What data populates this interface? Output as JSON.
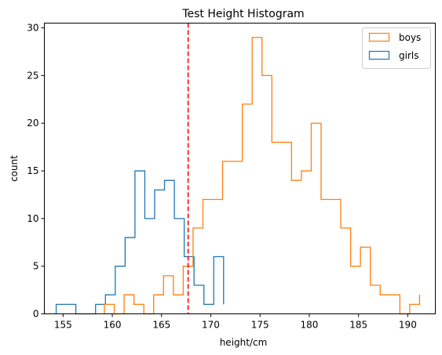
{
  "chart_data": {
    "type": "histogram",
    "title": "Test Height Histogram",
    "xlabel": "height/cm",
    "ylabel": "count",
    "xlim": [
      153.1,
      192.8
    ],
    "ylim": [
      0,
      30.5
    ],
    "xticks": [
      155,
      160,
      165,
      170,
      175,
      180,
      185,
      190
    ],
    "yticks": [
      0,
      5,
      10,
      15,
      20,
      25,
      30
    ],
    "grid": false,
    "legend_position": "top-right",
    "reference_line": {
      "x": 167.7,
      "color": "#ff0000",
      "style": "dashed"
    },
    "series": [
      {
        "name": "boys",
        "color": "#ff7f0e",
        "bin_edges": [
          159.2,
          160.2,
          161.2,
          162.2,
          163.2,
          164.2,
          165.2,
          166.2,
          167.2,
          168.2,
          169.2,
          170.2,
          171.2,
          172.2,
          173.2,
          174.2,
          175.2,
          176.2,
          177.2,
          178.2,
          179.2,
          180.2,
          181.2,
          182.2,
          183.2,
          184.2,
          185.2,
          186.2,
          187.2,
          188.2,
          189.2,
          190.2,
          191.2
        ],
        "counts": [
          1,
          0,
          2,
          1,
          0,
          2,
          4,
          2,
          5,
          9,
          12,
          12,
          16,
          16,
          22,
          29,
          25,
          18,
          18,
          14,
          15,
          20,
          12,
          12,
          9,
          5,
          7,
          3,
          2,
          2,
          0,
          1,
          2
        ]
      },
      {
        "name": "girls",
        "color": "#1f77b4",
        "bin_edges": [
          154.3,
          155.3,
          156.3,
          157.3,
          158.3,
          159.3,
          160.3,
          161.3,
          162.3,
          163.3,
          164.3,
          165.3,
          166.3,
          167.3,
          168.3,
          169.3,
          170.3,
          171.3
        ],
        "counts": [
          1,
          1,
          0,
          0,
          1,
          2,
          5,
          8,
          15,
          10,
          13,
          14,
          10,
          6,
          3,
          1,
          6,
          1
        ]
      }
    ]
  }
}
